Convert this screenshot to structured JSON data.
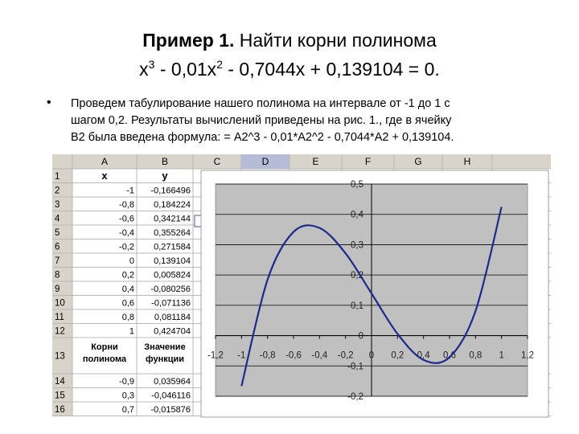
{
  "title": {
    "line1_bold": "Пример 1.",
    "line1_rest": " Найти корни полинома",
    "line2": [
      "x",
      "3",
      " - 0,01x",
      "2",
      " - 0,7044x + 0,139104 = 0."
    ]
  },
  "bullet": {
    "lines": [
      "Проведем табулирование нашего полинома на интервале от -1 до 1 с",
      "шагом 0,2. Результаты вычислений приведены на рис. 1., где в ячейку",
      "B2 была введена формула: = A2^3 - 0,01*A2^2 - 0,7044*A2 + 0,139104."
    ]
  },
  "spreadsheet": {
    "columns": [
      "A",
      "B",
      "C",
      "D",
      "E",
      "F",
      "G",
      "H"
    ],
    "rows": [
      {
        "num": "1",
        "cells": [
          "x",
          "у"
        ]
      },
      {
        "num": "2",
        "cells": [
          "-1",
          "-0,166496"
        ]
      },
      {
        "num": "3",
        "cells": [
          "-0,8",
          "0,184224"
        ]
      },
      {
        "num": "4",
        "cells": [
          "-0,6",
          "0,342144"
        ]
      },
      {
        "num": "5",
        "cells": [
          "-0,4",
          "0,355264"
        ]
      },
      {
        "num": "6",
        "cells": [
          "-0,2",
          "0,271584"
        ]
      },
      {
        "num": "7",
        "cells": [
          "0",
          "0,139104"
        ]
      },
      {
        "num": "8",
        "cells": [
          "0,2",
          "0,005824"
        ]
      },
      {
        "num": "9",
        "cells": [
          "0,4",
          "-0,080256"
        ]
      },
      {
        "num": "10",
        "cells": [
          "0,6",
          "-0,071136"
        ]
      },
      {
        "num": "11",
        "cells": [
          "0,8",
          "0,081184"
        ]
      },
      {
        "num": "12",
        "cells": [
          "1",
          "0,424704"
        ]
      },
      {
        "num": "13",
        "cells": [
          [
            "Корни",
            "полинома"
          ],
          [
            "Значение",
            "функции"
          ]
        ]
      },
      {
        "num": "14",
        "cells": [
          "-0,9",
          "0,035964"
        ]
      },
      {
        "num": "15",
        "cells": [
          "0,3",
          "-0,046116"
        ]
      },
      {
        "num": "16",
        "cells": [
          "0,7",
          "-0,015876"
        ]
      }
    ]
  },
  "chart_data": {
    "type": "line",
    "x": [
      -1,
      -0.8,
      -0.6,
      -0.4,
      -0.2,
      0,
      0.2,
      0.4,
      0.6,
      0.8,
      1
    ],
    "series": [
      {
        "color": "#1c2a8a",
        "values": [
          -0.166496,
          0.184224,
          0.342144,
          0.355264,
          0.271584,
          0.139104,
          0.005824,
          -0.080256,
          -0.071136,
          0.081184,
          0.424704
        ]
      }
    ],
    "xlim": [
      -1.2,
      1.2
    ],
    "xticks": [
      {
        "value": -1.2,
        "label": "-1,2"
      },
      -1,
      {
        "value": -0.8,
        "label": "-0,8"
      },
      {
        "value": -0.6,
        "label": "-0,6"
      },
      {
        "value": -0.4,
        "label": "-0,4"
      },
      {
        "value": -0.2,
        "label": "-0,2"
      },
      0,
      {
        "value": 0.2,
        "label": "0,2"
      },
      {
        "value": 0.4,
        "label": "0,4"
      },
      {
        "value": 0.6,
        "label": "0,6"
      },
      {
        "value": 0.8,
        "label": "0,8"
      },
      1,
      {
        "value": 1.2,
        "label": "1,2"
      }
    ],
    "ylim": [
      -0.2,
      0.5
    ],
    "yticks": [
      {
        "value": -0.2,
        "label": "-0,2"
      },
      {
        "value": -0.1,
        "label": "-0,1"
      },
      0,
      {
        "value": 0.1,
        "label": "0,1"
      },
      {
        "value": 0.2,
        "label": "0,2"
      },
      {
        "value": 0.3,
        "label": "0,3"
      },
      {
        "value": 0.4,
        "label": "0,4"
      },
      {
        "value": 0.5,
        "label": "0,5"
      }
    ],
    "grid": true,
    "plot_color": "#c0c0c0"
  }
}
